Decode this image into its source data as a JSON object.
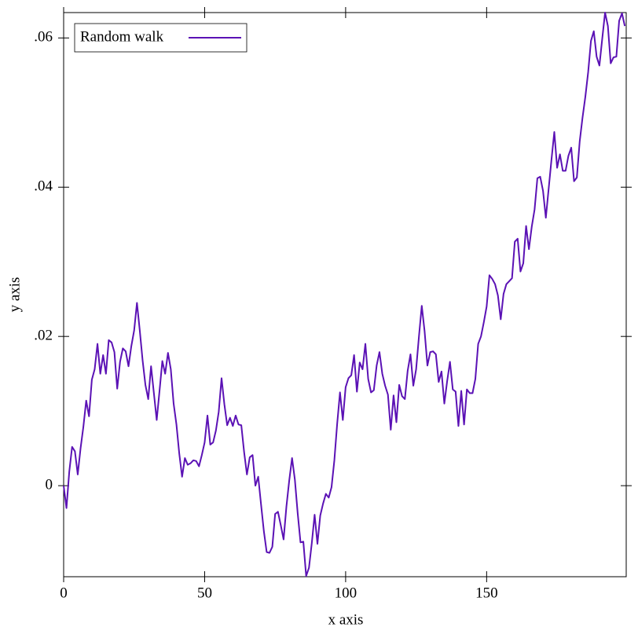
{
  "chart_data": {
    "type": "line",
    "xlabel": "x axis",
    "ylabel": "y axis",
    "x": [
      0,
      1,
      2,
      3,
      4,
      5,
      6,
      7,
      8,
      9,
      10,
      11,
      12,
      13,
      14,
      15,
      16,
      17,
      18,
      19,
      20,
      21,
      22,
      23,
      24,
      25,
      26,
      27,
      28,
      29,
      30,
      31,
      32,
      33,
      34,
      35,
      36,
      37,
      38,
      39,
      40,
      41,
      42,
      43,
      44,
      45,
      46,
      47,
      48,
      49,
      50,
      51,
      52,
      53,
      54,
      55,
      56,
      57,
      58,
      59,
      60,
      61,
      62,
      63,
      64,
      65,
      66,
      67,
      68,
      69,
      70,
      71,
      72,
      73,
      74,
      75,
      76,
      77,
      78,
      79,
      80,
      81,
      82,
      83,
      84,
      85,
      86,
      87,
      88,
      89,
      90,
      91,
      92,
      93,
      94,
      95,
      96,
      97,
      98,
      99,
      100,
      101,
      102,
      103,
      104,
      105,
      106,
      107,
      108,
      109,
      110,
      111,
      112,
      113,
      114,
      115,
      116,
      117,
      118,
      119,
      120,
      121,
      122,
      123,
      124,
      125,
      126,
      127,
      128,
      129,
      130,
      131,
      132,
      133,
      134,
      135,
      136,
      137,
      138,
      139,
      140,
      141,
      142,
      143,
      144,
      145,
      146,
      147,
      148,
      149,
      150,
      151,
      152,
      153,
      154,
      155,
      156,
      157,
      158,
      159,
      160,
      161,
      162,
      163,
      164,
      165,
      166,
      167,
      168,
      169,
      170,
      171,
      172,
      173,
      174,
      175,
      176,
      177,
      178,
      179,
      180,
      181,
      182,
      183,
      184,
      185,
      186,
      187,
      188,
      189,
      190,
      191,
      192,
      193,
      194,
      195,
      196,
      197,
      198,
      199
    ],
    "series": [
      {
        "name": "Random walk",
        "color": "#5b12b5",
        "values": [
          0,
          -0.003,
          0.0019,
          0.0052,
          0.0046,
          0.0015,
          0.005,
          0.0079,
          0.0114,
          0.0093,
          0.0142,
          0.0156,
          0.019,
          0.015,
          0.0175,
          0.015,
          0.0195,
          0.0192,
          0.0179,
          0.013,
          0.0166,
          0.0184,
          0.018,
          0.016,
          0.0187,
          0.0208,
          0.0245,
          0.0208,
          0.0168,
          0.0135,
          0.0116,
          0.016,
          0.0124,
          0.0088,
          0.0127,
          0.0167,
          0.015,
          0.0178,
          0.0156,
          0.011,
          0.0082,
          0.0043,
          0.0012,
          0.0037,
          0.0028,
          0.003,
          0.0034,
          0.0033,
          0.0026,
          0.0041,
          0.0058,
          0.0094,
          0.0055,
          0.0058,
          0.0074,
          0.0099,
          0.0144,
          0.0109,
          0.0081,
          0.0091,
          0.008,
          0.0094,
          0.0082,
          0.0081,
          0.0045,
          0.0015,
          0.0038,
          0.0041,
          0,
          0.0012,
          -0.0025,
          -0.0061,
          -0.0089,
          -0.009,
          -0.0082,
          -0.0038,
          -0.0035,
          -0.0053,
          -0.0072,
          -0.0028,
          0.0007,
          0.0037,
          0.0008,
          -0.0037,
          -0.0076,
          -0.0075,
          -0.0121,
          -0.011,
          -0.0077,
          -0.0039,
          -0.0078,
          -0.004,
          -0.0024,
          -0.0011,
          -0.0016,
          -0.0002,
          0.0034,
          0.0083,
          0.0125,
          0.0088,
          0.0132,
          0.0144,
          0.0148,
          0.0175,
          0.0126,
          0.0165,
          0.0156,
          0.019,
          0.0143,
          0.0125,
          0.0128,
          0.0161,
          0.0179,
          0.015,
          0.0134,
          0.0122,
          0.0075,
          0.0121,
          0.0085,
          0.0135,
          0.012,
          0.0116,
          0.0154,
          0.0176,
          0.0134,
          0.0156,
          0.02,
          0.0241,
          0.0207,
          0.0161,
          0.0179,
          0.018,
          0.0176,
          0.0139,
          0.0153,
          0.011,
          0.014,
          0.0166,
          0.0129,
          0.0126,
          0.008,
          0.0127,
          0.0082,
          0.0129,
          0.0124,
          0.0124,
          0.0143,
          0.019,
          0.02,
          0.0219,
          0.024,
          0.0282,
          0.0277,
          0.027,
          0.0255,
          0.0223,
          0.0257,
          0.027,
          0.0274,
          0.0278,
          0.0327,
          0.0331,
          0.0287,
          0.0298,
          0.0348,
          0.0317,
          0.0347,
          0.037,
          0.0412,
          0.0414,
          0.0395,
          0.0359,
          0.0398,
          0.0437,
          0.0474,
          0.0426,
          0.0444,
          0.0422,
          0.0422,
          0.0442,
          0.0453,
          0.0408,
          0.0413,
          0.0461,
          0.0493,
          0.0521,
          0.0554,
          0.0596,
          0.0609,
          0.0575,
          0.0563,
          0.0599,
          0.0634,
          0.0616,
          0.0566,
          0.0574,
          0.0575,
          0.0623,
          0.0633,
          0.0616
        ]
      }
    ],
    "xlim": [
      0,
      199.5
    ],
    "xticks": [
      0,
      50,
      100,
      150
    ],
    "ylim": [
      -0.0122,
      0.0634
    ],
    "yticks": [
      0,
      {
        "value": 0.02,
        "label": ".02"
      },
      {
        "value": 0.04,
        "label": ".04"
      },
      {
        "value": 0.06,
        "label": ".06"
      }
    ],
    "legend": "top-left"
  }
}
